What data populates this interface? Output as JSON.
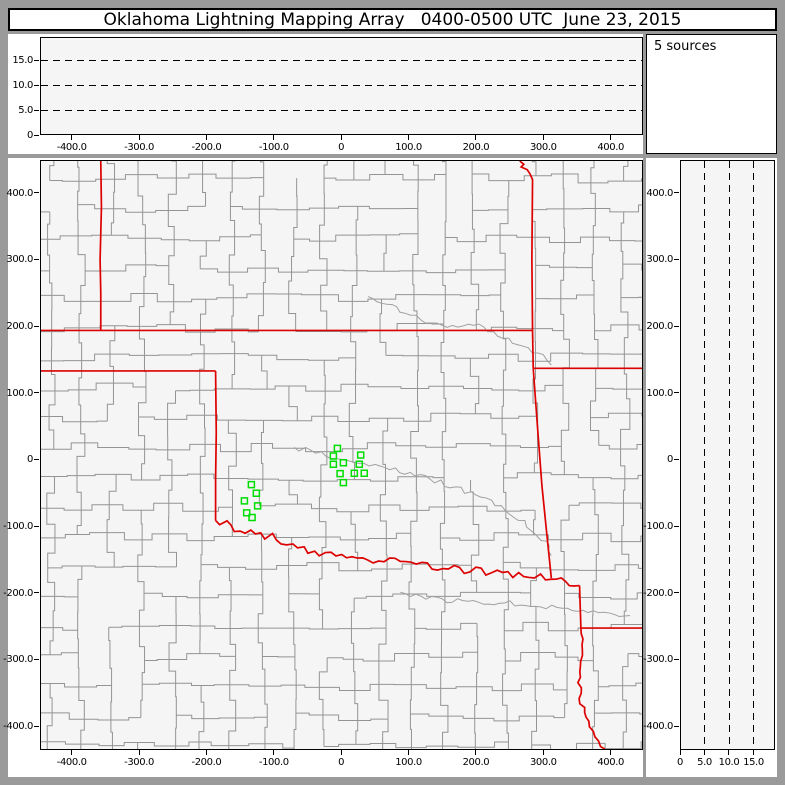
{
  "title": "Oklahoma Lightning Mapping Array   0400-0500 UTC  June 23, 2015",
  "sources_label": "5 sources",
  "colors": {
    "frame": "#9a9a9a",
    "plot_background": "#f5f5f5",
    "county_line": "#949494",
    "river_line": "#a0a0a0",
    "state_border": "#dd0000",
    "station_marker": "#00dd00",
    "axis": "#000000"
  },
  "axes": {
    "map_x_ticks": {
      "values": [
        -400,
        -300,
        -200,
        -100,
        0,
        100,
        200,
        300,
        400
      ],
      "labels": [
        "-400.0",
        "-300.0",
        "-200.0",
        "-100.0",
        "0",
        "100.0",
        "200.0",
        "300.0",
        "400.0"
      ]
    },
    "map_y_ticks": {
      "values": [
        400,
        300,
        200,
        100,
        0,
        -100,
        -200,
        -300,
        -400
      ],
      "labels": [
        "400.0",
        "300.0",
        "200.0",
        "100.0",
        "0",
        "-100.0",
        "-200.0",
        "-300.0",
        "-400.0"
      ]
    },
    "alt_ticks": {
      "values": [
        0,
        5,
        10,
        15
      ],
      "labels": [
        "0",
        "5.0",
        "10.0",
        "15.0"
      ]
    }
  },
  "chart_data": {
    "type": "scatter",
    "title": "Oklahoma Lightning Mapping Array",
    "time_window": "0400-0500 UTC",
    "date": "June 23, 2015",
    "source_count_label": "5 sources",
    "x_range_km": [
      -447,
      448
    ],
    "y_range_km": [
      -436,
      449
    ],
    "alt_range_km": [
      0,
      19.7
    ],
    "alt_gridlines_km": [
      5,
      10,
      15
    ],
    "grid": "dashed-altitude-only",
    "legend_position": "top-right-panel",
    "marker_style": {
      "shape": "open-square",
      "color": "#00dd00",
      "size_km": 9
    },
    "markers_km": [
      [
        -5.6,
        16.5
      ],
      [
        -11.6,
        5.0
      ],
      [
        3.3,
        -5.1
      ],
      [
        29.1,
        6.4
      ],
      [
        27.0,
        -7.5
      ],
      [
        -11.6,
        -7.5
      ],
      [
        -1.6,
        -21.6
      ],
      [
        19.6,
        -21.0
      ],
      [
        34.4,
        -21.0
      ],
      [
        3.3,
        -35.1
      ],
      [
        -133.7,
        -38.1
      ],
      [
        -126.3,
        -51.0
      ],
      [
        -144.1,
        -62.5
      ],
      [
        -124.4,
        -70.0
      ],
      [
        -140.7,
        -80.5
      ],
      [
        -132.7,
        -87.6
      ]
    ],
    "altitude_panel_points": [],
    "state_borders_km": [
      {
        "name": "colorado-kansas",
        "pts": [
          [
            -358,
            449
          ],
          [
            -357,
            380
          ],
          [
            -359,
            300
          ],
          [
            -358,
            250
          ],
          [
            -358,
            194
          ]
        ]
      },
      {
        "name": "kansas-oklahoma-37n",
        "pts": [
          [
            -447,
            194
          ],
          [
            285,
            194
          ]
        ]
      },
      {
        "name": "kansas-missouri",
        "pts": [
          [
            266,
            449
          ],
          [
            272,
            444
          ],
          [
            268,
            440
          ],
          [
            277,
            436
          ],
          [
            281,
            430
          ],
          [
            285,
            421
          ],
          [
            284,
            300
          ],
          [
            285,
            194
          ],
          [
            286,
            137
          ]
        ]
      },
      {
        "name": "missouri-arkansas",
        "pts": [
          [
            286,
            137
          ],
          [
            448,
            137
          ]
        ]
      },
      {
        "name": "oklahoma-arkansas",
        "pts": [
          [
            286,
            137
          ],
          [
            293,
            40
          ],
          [
            299,
            -40
          ],
          [
            306,
            -110
          ],
          [
            313,
            -179
          ]
        ]
      },
      {
        "name": "okpanhandle-texas-365n",
        "pts": [
          [
            -447,
            133
          ],
          [
            -187,
            133
          ]
        ]
      },
      {
        "name": "texas-100w",
        "pts": [
          [
            -187,
            133
          ],
          [
            -186,
            40
          ],
          [
            -187,
            -30
          ],
          [
            -187,
            -92
          ]
        ]
      },
      {
        "name": "red-river",
        "wavy": 6,
        "pts": [
          [
            -187,
            -92
          ],
          [
            -150,
            -107
          ],
          [
            -120,
            -112
          ],
          [
            -80,
            -125
          ],
          [
            -40,
            -140
          ],
          [
            0,
            -148
          ],
          [
            40,
            -150
          ],
          [
            80,
            -153
          ],
          [
            120,
            -158
          ],
          [
            160,
            -163
          ],
          [
            200,
            -168
          ],
          [
            240,
            -172
          ],
          [
            280,
            -175
          ],
          [
            313,
            -179
          ],
          [
            334,
            -184
          ],
          [
            355,
            -190
          ]
        ]
      },
      {
        "name": "texas-arkansas",
        "pts": [
          [
            355,
            -190
          ],
          [
            357,
            -254
          ]
        ]
      },
      {
        "name": "arkansas-louisiana",
        "pts": [
          [
            357,
            -254
          ],
          [
            448,
            -254
          ]
        ]
      },
      {
        "name": "texas-louisiana",
        "wavy": 4,
        "pts": [
          [
            357,
            -254
          ],
          [
            356,
            -320
          ],
          [
            357,
            -368
          ],
          [
            364,
            -388
          ],
          [
            371,
            -402
          ],
          [
            377,
            -418
          ],
          [
            388,
            -431
          ],
          [
            396,
            -441
          ],
          [
            402,
            -449
          ]
        ]
      }
    ],
    "rivers_km": [
      {
        "name": "river-southeast",
        "wavy": 4,
        "pts": [
          [
            88,
            -200
          ],
          [
            150,
            -212
          ],
          [
            220,
            -215
          ],
          [
            290,
            -219
          ],
          [
            360,
            -228
          ],
          [
            430,
            -235
          ]
        ]
      },
      {
        "name": "river-northeast",
        "wavy": 4,
        "pts": [
          [
            40,
            245
          ],
          [
            95,
            220
          ],
          [
            150,
            200
          ],
          [
            205,
            202
          ],
          [
            255,
            175
          ],
          [
            300,
            155
          ],
          [
            313,
            142
          ]
        ]
      },
      {
        "name": "river-central",
        "wavy": 4,
        "pts": [
          [
            -70,
            18
          ],
          [
            -30,
            8
          ],
          [
            10,
            0
          ],
          [
            50,
            -10
          ],
          [
            95,
            -20
          ],
          [
            140,
            -32
          ],
          [
            185,
            -48
          ],
          [
            230,
            -68
          ],
          [
            265,
            -90
          ],
          [
            290,
            -110
          ],
          [
            310,
            -130
          ],
          [
            313,
            -145
          ]
        ]
      }
    ]
  }
}
